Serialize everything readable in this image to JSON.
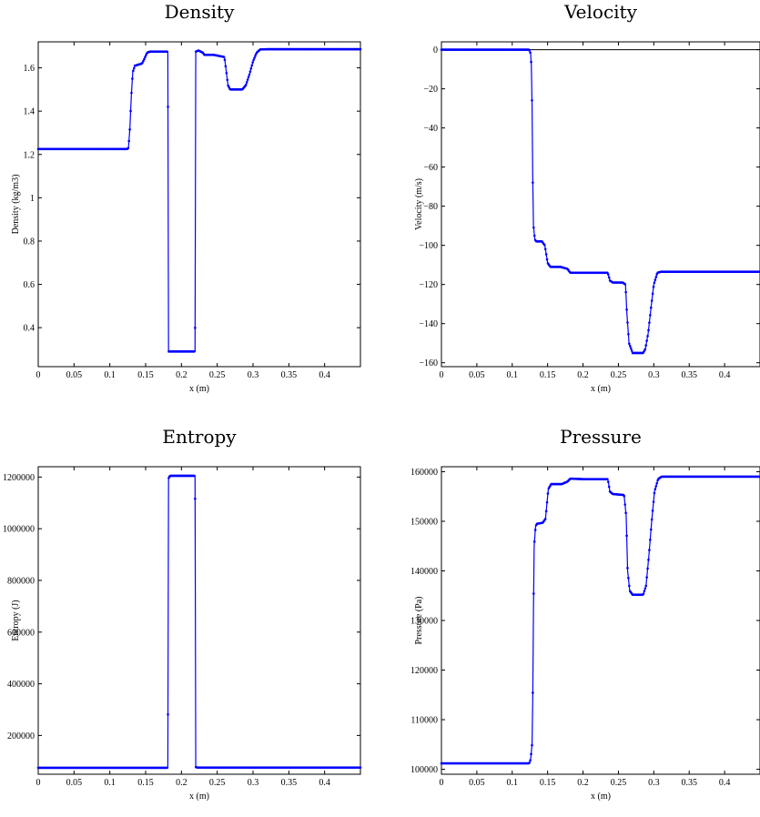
{
  "chart_data": [
    {
      "type": "line",
      "title": "Density",
      "xlabel": "x (m)",
      "ylabel": "Density (kg/m3)",
      "xlim": [
        0,
        0.45
      ],
      "ylim": [
        0.22,
        1.72
      ],
      "xticks": [
        "0",
        "0.05",
        "0.1",
        "0.15",
        "0.2",
        "0.25",
        "0.3",
        "0.35",
        "0.4"
      ],
      "xtick_values": [
        0,
        0.05,
        0.1,
        0.15,
        0.2,
        0.25,
        0.3,
        0.35,
        0.4
      ],
      "yticks": [
        "0.4",
        "0.6",
        "0.8",
        "1",
        "1.2",
        "1.4",
        "1.6"
      ],
      "ytick_values": [
        0.4,
        0.6,
        0.8,
        1,
        1.2,
        1.4,
        1.6
      ],
      "color": "#0000ff",
      "series": [
        {
          "x": [
            0,
            0.124,
            0.126,
            0.128,
            0.13,
            0.132,
            0.135,
            0.145,
            0.148,
            0.152,
            0.156,
            0.17,
            0.181,
            0.182,
            0.219,
            0.22,
            0.224,
            0.23,
            0.232,
            0.245,
            0.26,
            0.262,
            0.265,
            0.268,
            0.272,
            0.285,
            0.29,
            0.295,
            0.3,
            0.305,
            0.31,
            0.32,
            0.45
          ],
          "y": [
            1.225,
            1.225,
            1.23,
            1.32,
            1.47,
            1.58,
            1.61,
            1.62,
            1.64,
            1.67,
            1.675,
            1.675,
            1.675,
            0.29,
            0.29,
            1.675,
            1.68,
            1.67,
            1.66,
            1.66,
            1.65,
            1.6,
            1.52,
            1.5,
            1.5,
            1.5,
            1.52,
            1.57,
            1.63,
            1.67,
            1.685,
            1.686,
            1.686
          ]
        }
      ]
    },
    {
      "type": "line",
      "title": "Velocity",
      "xlabel": "x (m)",
      "ylabel": "Velocity (m/s)",
      "xlim": [
        0,
        0.45
      ],
      "ylim": [
        -162,
        4
      ],
      "xticks": [
        "0",
        "0.05",
        "0.1",
        "0.15",
        "0.2",
        "0.25",
        "0.3",
        "0.35",
        "0.4"
      ],
      "xtick_values": [
        0,
        0.05,
        0.1,
        0.15,
        0.2,
        0.25,
        0.3,
        0.35,
        0.4
      ],
      "yticks": [
        "0",
        "−20",
        "−40",
        "−60",
        "−80",
        "−100",
        "−120",
        "−140",
        "−160"
      ],
      "ytick_values": [
        0,
        -20,
        -40,
        -60,
        -80,
        -100,
        -120,
        -140,
        -160
      ],
      "hline": 0,
      "color": "#0000ff",
      "series": [
        {
          "x": [
            0,
            0.124,
            0.126,
            0.127,
            0.128,
            0.129,
            0.13,
            0.132,
            0.134,
            0.142,
            0.146,
            0.15,
            0.154,
            0.168,
            0.178,
            0.182,
            0.2,
            0.235,
            0.238,
            0.242,
            0.256,
            0.26,
            0.262,
            0.265,
            0.27,
            0.285,
            0.288,
            0.292,
            0.296,
            0.3,
            0.305,
            0.31,
            0.45
          ],
          "y": [
            0,
            0,
            -2,
            -8,
            -28,
            -66,
            -90,
            -97,
            -98,
            -98,
            -100,
            -109,
            -111,
            -111,
            -112,
            -114,
            -114,
            -114,
            -118,
            -119,
            -119,
            -120,
            -135,
            -150,
            -155,
            -155,
            -153,
            -145,
            -132,
            -120,
            -114,
            -113.5,
            -113.5
          ]
        }
      ]
    },
    {
      "type": "line",
      "title": "Entropy",
      "xlabel": "x (m)",
      "ylabel": "Entropy (J)",
      "xlim": [
        0,
        0.45
      ],
      "ylim": [
        50000,
        1240000
      ],
      "xticks": [
        "0",
        "0.05",
        "0.1",
        "0.15",
        "0.2",
        "0.25",
        "0.3",
        "0.35",
        "0.4"
      ],
      "xtick_values": [
        0,
        0.05,
        0.1,
        0.15,
        0.2,
        0.25,
        0.3,
        0.35,
        0.4
      ],
      "yticks": [
        "200000",
        "400000",
        "600000",
        "800000",
        "1000000",
        "1200000"
      ],
      "ytick_values": [
        200000,
        400000,
        600000,
        800000,
        1000000,
        1200000
      ],
      "color": "#0000ff",
      "series": [
        {
          "x": [
            0,
            0.181,
            0.182,
            0.184,
            0.219,
            0.22,
            0.222,
            0.45
          ],
          "y": [
            75000,
            75000,
            1195000,
            1205000,
            1205000,
            78000,
            76000,
            76000
          ]
        }
      ]
    },
    {
      "type": "line",
      "title": "Pressure",
      "xlabel": "x (m)",
      "ylabel": "Pressure (Pa)",
      "xlim": [
        0,
        0.45
      ],
      "ylim": [
        99000,
        161000
      ],
      "xticks": [
        "0",
        "0.05",
        "0.1",
        "0.15",
        "0.2",
        "0.25",
        "0.3",
        "0.35",
        "0.4"
      ],
      "xtick_values": [
        0,
        0.05,
        0.1,
        0.15,
        0.2,
        0.25,
        0.3,
        0.35,
        0.4
      ],
      "yticks": [
        "100000",
        "110000",
        "120000",
        "130000",
        "140000",
        "150000",
        "160000"
      ],
      "ytick_values": [
        100000,
        110000,
        120000,
        130000,
        140000,
        150000,
        160000
      ],
      "color": "#0000ff",
      "series": [
        {
          "x": [
            0,
            0.124,
            0.126,
            0.128,
            0.129,
            0.13,
            0.131,
            0.133,
            0.135,
            0.143,
            0.147,
            0.151,
            0.155,
            0.17,
            0.178,
            0.182,
            0.2,
            0.235,
            0.238,
            0.242,
            0.258,
            0.261,
            0.263,
            0.266,
            0.27,
            0.285,
            0.289,
            0.293,
            0.297,
            0.301,
            0.306,
            0.311,
            0.45
          ],
          "y": [
            101200,
            101200,
            102000,
            105000,
            114000,
            132000,
            145000,
            149000,
            149500,
            149700,
            150500,
            156500,
            157500,
            157500,
            158000,
            158600,
            158500,
            158500,
            156000,
            155500,
            155300,
            151000,
            140000,
            136000,
            135200,
            135200,
            137000,
            143000,
            150000,
            156000,
            158500,
            159000,
            159000
          ]
        }
      ]
    }
  ]
}
